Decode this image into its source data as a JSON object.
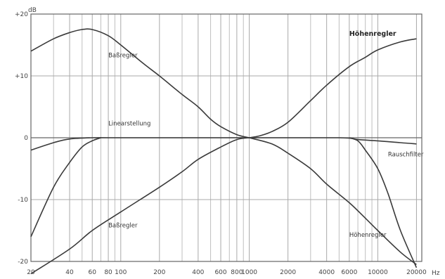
{
  "chart_data": {
    "type": "line",
    "title": "",
    "ylabel": "dB",
    "xlabel": "",
    "xunit": "Hz",
    "xscale": "log",
    "xlim": [
      20,
      22000
    ],
    "ylim": [
      -20,
      20
    ],
    "grid": true,
    "x_ticks": [
      {
        "value": 20,
        "label": "20"
      },
      {
        "value": 40,
        "label": "40"
      },
      {
        "value": 60,
        "label": "60"
      },
      {
        "value": 80,
        "label": "80"
      },
      {
        "value": 100,
        "label": "100"
      },
      {
        "value": 200,
        "label": "200"
      },
      {
        "value": 400,
        "label": "400"
      },
      {
        "value": 600,
        "label": "600"
      },
      {
        "value": 800,
        "label": "800"
      },
      {
        "value": 1000,
        "label": "1000"
      },
      {
        "value": 2000,
        "label": "2000"
      },
      {
        "value": 4000,
        "label": "4000"
      },
      {
        "value": 6000,
        "label": "6000"
      },
      {
        "value": 10000,
        "label": "10000"
      },
      {
        "value": 20000,
        "label": "20000"
      }
    ],
    "x_minor": [
      30,
      50,
      70,
      90,
      300,
      500,
      700,
      900,
      3000,
      5000,
      7000,
      8000,
      9000
    ],
    "y_ticks": [
      {
        "value": 20,
        "label": "+20"
      },
      {
        "value": 10,
        "label": "+10"
      },
      {
        "value": 0,
        "label": "0"
      },
      {
        "value": -10,
        "label": "-10"
      },
      {
        "value": -20,
        "label": "-20"
      }
    ],
    "series": [
      {
        "name": "Baßregler",
        "points": [
          [
            20,
            14
          ],
          [
            30,
            16
          ],
          [
            40,
            17
          ],
          [
            50,
            17.5
          ],
          [
            60,
            17.5
          ],
          [
            80,
            16.5
          ],
          [
            100,
            15
          ],
          [
            150,
            12
          ],
          [
            200,
            10
          ],
          [
            300,
            7
          ],
          [
            400,
            5
          ],
          [
            500,
            3
          ],
          [
            600,
            1.8
          ],
          [
            800,
            0.5
          ],
          [
            1000,
            0
          ]
        ]
      },
      {
        "name": "Baßregler",
        "points": [
          [
            20,
            -22
          ],
          [
            40,
            -18
          ],
          [
            60,
            -15
          ],
          [
            100,
            -12
          ],
          [
            200,
            -8
          ],
          [
            300,
            -5.5
          ],
          [
            400,
            -3.5
          ],
          [
            600,
            -1.5
          ],
          [
            800,
            -0.3
          ],
          [
            1000,
            0
          ]
        ]
      },
      {
        "name": "Höhenregler",
        "points": [
          [
            1000,
            0
          ],
          [
            1200,
            0.3
          ],
          [
            1500,
            1
          ],
          [
            2000,
            2.5
          ],
          [
            3000,
            6
          ],
          [
            4000,
            8.5
          ],
          [
            6000,
            11.5
          ],
          [
            8000,
            13
          ],
          [
            10000,
            14.2
          ],
          [
            15000,
            15.5
          ],
          [
            20000,
            16
          ]
        ]
      },
      {
        "name": "Höhenregler",
        "points": [
          [
            1000,
            0
          ],
          [
            1500,
            -1
          ],
          [
            2000,
            -2.5
          ],
          [
            3000,
            -5
          ],
          [
            4000,
            -7.5
          ],
          [
            6000,
            -10.5
          ],
          [
            8000,
            -13
          ],
          [
            10000,
            -15
          ],
          [
            15000,
            -18.5
          ],
          [
            20000,
            -20.5
          ]
        ]
      },
      {
        "name": "Linearstellung",
        "points": [
          [
            20,
            -2
          ],
          [
            30,
            -0.8
          ],
          [
            40,
            -0.2
          ],
          [
            60,
            0
          ],
          [
            100,
            0
          ],
          [
            1000,
            0
          ],
          [
            5000,
            0
          ],
          [
            7000,
            -0.3
          ],
          [
            10000,
            -0.5
          ],
          [
            15000,
            -0.8
          ],
          [
            20000,
            -1
          ]
        ]
      },
      {
        "name": "",
        "points": [
          [
            20,
            -16
          ],
          [
            30,
            -8
          ],
          [
            40,
            -4
          ],
          [
            50,
            -1.5
          ],
          [
            60,
            -0.5
          ],
          [
            70,
            0
          ]
        ]
      },
      {
        "name": "Rauschfilter",
        "points": [
          [
            6000,
            0
          ],
          [
            7000,
            -0.5
          ],
          [
            8000,
            -2
          ],
          [
            10000,
            -5
          ],
          [
            12000,
            -9
          ],
          [
            15000,
            -15
          ],
          [
            20000,
            -21
          ]
        ]
      }
    ],
    "annotations": [
      {
        "text": "Baßregler",
        "x": 80,
        "y": 13
      },
      {
        "text": "Linearstellung",
        "x": 80,
        "y": 2
      },
      {
        "text": "Baßregler",
        "x": 80,
        "y": -14.5
      },
      {
        "text": "Höhenregler",
        "x": 6000,
        "y": 16.5
      },
      {
        "text": "Rauschfilter",
        "x": 12000,
        "y": -3
      },
      {
        "text": "Höhenregler",
        "x": 6000,
        "y": -16
      }
    ]
  }
}
